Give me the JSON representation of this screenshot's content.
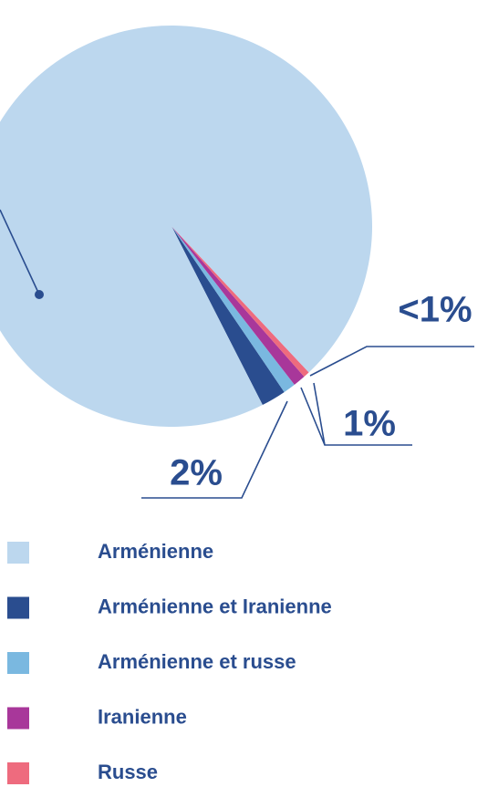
{
  "chart_data": {
    "type": "pie",
    "categories": [
      "Arménienne",
      "Arménienne et Iranienne",
      "Arménienne et russe",
      "Iranienne",
      "Russe"
    ],
    "values": [
      95.5,
      2,
      1,
      1,
      0.5
    ],
    "value_labels": [
      null,
      "2%",
      "1%",
      null,
      "<1%"
    ],
    "colors": [
      "#bcd7ee",
      "#2a4d8f",
      "#7ab8e0",
      "#a8379a",
      "#ee6b7e"
    ],
    "legend": "bottom"
  }
}
